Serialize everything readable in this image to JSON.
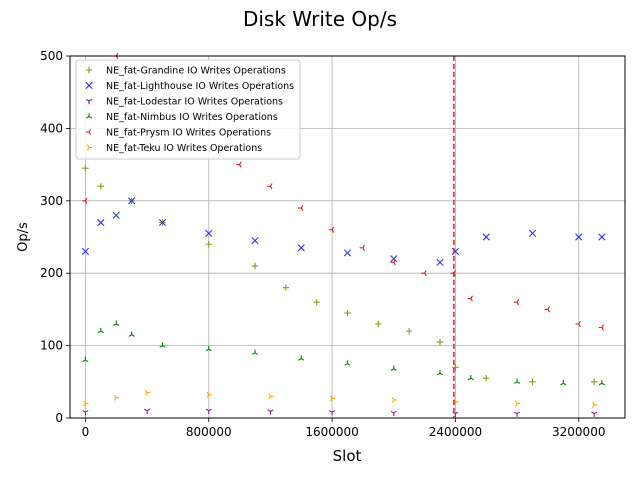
{
  "chart_data": {
    "type": "scatter",
    "title": "Disk Write Op/s",
    "xlabel": "Slot",
    "ylabel": "Op/s",
    "xlim": [
      -100000,
      3500000
    ],
    "ylim": [
      0,
      500
    ],
    "xticks": [
      0,
      800000,
      1600000,
      2400000,
      3200000
    ],
    "xtick_labels": [
      "0",
      "800000",
      "1600000",
      "2400000",
      "3200000"
    ],
    "yticks": [
      0,
      100,
      200,
      300,
      400,
      500
    ],
    "ytick_labels": [
      "0",
      "100",
      "200",
      "300",
      "400",
      "500"
    ],
    "grid": true,
    "legend_position": "top-left",
    "vline": {
      "x": 2390000,
      "color": "#d62728",
      "style": "dashed"
    },
    "series": [
      {
        "name": "NE_fat-Grandine IO Writes Operations",
        "marker": "+",
        "color": "#8c9a1a",
        "points": [
          [
            0,
            345
          ],
          [
            100000,
            320
          ],
          [
            300000,
            300
          ],
          [
            500000,
            270
          ],
          [
            800000,
            240
          ],
          [
            1100000,
            210
          ],
          [
            1300000,
            180
          ],
          [
            1500000,
            160
          ],
          [
            1700000,
            145
          ],
          [
            1900000,
            130
          ],
          [
            2100000,
            120
          ],
          [
            2300000,
            105
          ],
          [
            2400000,
            70
          ],
          [
            2600000,
            55
          ],
          [
            2900000,
            50
          ],
          [
            3300000,
            50
          ]
        ]
      },
      {
        "name": "NE_fat-Lighthouse IO Writes Operations",
        "marker": "x",
        "color": "#3333ff",
        "points": [
          [
            0,
            230
          ],
          [
            100000,
            270
          ],
          [
            200000,
            280
          ],
          [
            300000,
            300
          ],
          [
            500000,
            270
          ],
          [
            800000,
            255
          ],
          [
            1100000,
            245
          ],
          [
            1400000,
            235
          ],
          [
            1700000,
            228
          ],
          [
            2000000,
            220
          ],
          [
            2300000,
            215
          ],
          [
            2400000,
            230
          ],
          [
            2600000,
            250
          ],
          [
            2900000,
            255
          ],
          [
            3200000,
            250
          ],
          [
            3350000,
            250
          ]
        ]
      },
      {
        "name": "NE_fat-Lodestar IO Writes Operations",
        "marker": "1",
        "color": "#8b1a8b",
        "points": [
          [
            0,
            8
          ],
          [
            400000,
            10
          ],
          [
            800000,
            10
          ],
          [
            1200000,
            9
          ],
          [
            1600000,
            8
          ],
          [
            2000000,
            7
          ],
          [
            2400000,
            6
          ],
          [
            2800000,
            6
          ],
          [
            3300000,
            6
          ]
        ]
      },
      {
        "name": "NE_fat-Nimbus IO Writes Operations",
        "marker": "2",
        "color": "#008000",
        "points": [
          [
            0,
            80
          ],
          [
            100000,
            120
          ],
          [
            200000,
            130
          ],
          [
            300000,
            115
          ],
          [
            500000,
            100
          ],
          [
            800000,
            95
          ],
          [
            1100000,
            90
          ],
          [
            1400000,
            82
          ],
          [
            1700000,
            75
          ],
          [
            2000000,
            68
          ],
          [
            2300000,
            62
          ],
          [
            2500000,
            55
          ],
          [
            2800000,
            50
          ],
          [
            3100000,
            48
          ],
          [
            3350000,
            48
          ]
        ]
      },
      {
        "name": "NE_fat-Prysm IO Writes Operations",
        "marker": "3",
        "color": "#d62020",
        "points": [
          [
            0,
            300
          ],
          [
            200000,
            500
          ],
          [
            500000,
            440
          ],
          [
            800000,
            370
          ],
          [
            1000000,
            350
          ],
          [
            1200000,
            320
          ],
          [
            1400000,
            290
          ],
          [
            1600000,
            260
          ],
          [
            1800000,
            235
          ],
          [
            2000000,
            215
          ],
          [
            2200000,
            200
          ],
          [
            2390000,
            200
          ],
          [
            2500000,
            165
          ],
          [
            2800000,
            160
          ],
          [
            3000000,
            150
          ],
          [
            3200000,
            130
          ],
          [
            3350000,
            125
          ]
        ]
      },
      {
        "name": "NE_fat-Teku IO Writes Operations",
        "marker": "4",
        "color": "#ffa500",
        "points": [
          [
            0,
            20
          ],
          [
            200000,
            28
          ],
          [
            400000,
            35
          ],
          [
            800000,
            32
          ],
          [
            1200000,
            30
          ],
          [
            1600000,
            27
          ],
          [
            2000000,
            25
          ],
          [
            2400000,
            22
          ],
          [
            2800000,
            20
          ],
          [
            3300000,
            18
          ]
        ]
      }
    ]
  }
}
